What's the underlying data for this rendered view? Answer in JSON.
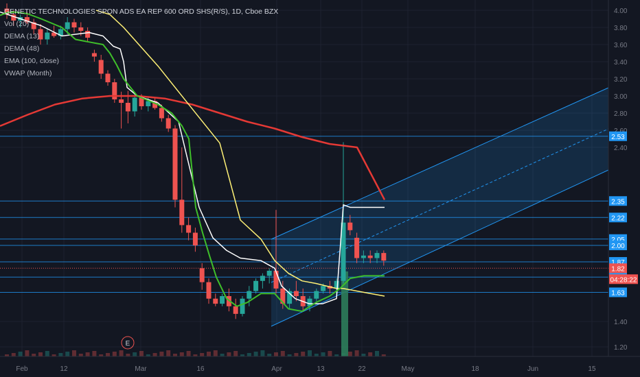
{
  "chart_data": {
    "type": "candlestick",
    "title": "GENETIC TECHNOLOGIES SPON ADS EA REP 600 ORD SHS(R/S), 1D, Cboe BZX",
    "indicators": [
      "Vol (20)",
      "DEMA (13)",
      "DEMA (48)",
      "EMA (100, close)",
      "VWAP (Month)"
    ],
    "colors": {
      "background": "#131722",
      "up": "#26a69a",
      "down": "#ef5350",
      "ema100": "#e53935",
      "dema13": "#ffffff",
      "dema48": "#fff176",
      "vwap": "#3fbf2a",
      "hlines": "#2196f3",
      "channel": "#2196f3",
      "volume_spike": "#2e7d5b",
      "earnings": "#ef5350"
    },
    "y_axis": {
      "ticks": [
        "4.00",
        "3.80",
        "3.60",
        "3.40",
        "3.20",
        "3.00",
        "2.80",
        "2.60",
        "2.40",
        "1.40",
        "1.20"
      ],
      "tick_values": [
        4.0,
        3.8,
        3.6,
        3.4,
        3.2,
        3.0,
        2.8,
        2.6,
        2.4,
        1.4,
        1.2
      ],
      "ylim": [
        1.15,
        4.05
      ]
    },
    "x_axis": {
      "ticks": [
        "Feb",
        "12",
        "Mar",
        "16",
        "Apr",
        "13",
        "22",
        "May",
        "18",
        "Jun",
        "15"
      ]
    },
    "price_lines": [
      {
        "label": "2.53",
        "value": 2.53
      },
      {
        "label": "2.35",
        "value": 2.35
      },
      {
        "label": "2.22",
        "value": 2.22
      },
      {
        "label": "2.05",
        "value": 2.05
      },
      {
        "label": "2.00",
        "value": 2.0
      },
      {
        "label": "1.87",
        "value": 1.87
      },
      {
        "label": "1.75",
        "value": 1.75
      },
      {
        "label": "1.63",
        "value": 1.63
      }
    ],
    "current_price": {
      "label": "1.82",
      "value": 1.82,
      "countdown": "04:28:22"
    },
    "candles": [
      [
        4.02,
        4.08,
        3.9,
        3.95
      ],
      [
        3.95,
        4.0,
        3.82,
        3.88
      ],
      [
        3.88,
        3.95,
        3.8,
        3.92
      ],
      [
        3.92,
        3.98,
        3.84,
        3.86
      ],
      [
        3.86,
        3.9,
        3.72,
        3.78
      ],
      [
        3.78,
        3.84,
        3.6,
        3.66
      ],
      [
        3.66,
        3.78,
        3.6,
        3.74
      ],
      [
        3.74,
        3.82,
        3.68,
        3.7
      ],
      [
        3.7,
        3.82,
        3.66,
        3.78
      ],
      [
        3.78,
        3.92,
        3.72,
        3.86
      ],
      [
        3.86,
        3.9,
        3.74,
        3.8
      ],
      [
        3.8,
        3.86,
        3.7,
        3.76
      ],
      [
        3.76,
        3.8,
        3.64,
        3.68
      ],
      [
        3.5,
        3.54,
        3.4,
        3.46
      ],
      [
        3.42,
        3.48,
        3.2,
        3.26
      ],
      [
        3.26,
        3.3,
        3.12,
        3.16
      ],
      [
        3.16,
        3.2,
        2.92,
        2.96
      ],
      [
        2.96,
        3.05,
        2.62,
        2.92
      ],
      [
        2.92,
        3.06,
        2.68,
        2.82
      ],
      [
        2.82,
        3.02,
        2.76,
        2.98
      ],
      [
        2.98,
        3.02,
        2.84,
        2.88
      ],
      [
        2.88,
        2.98,
        2.82,
        2.94
      ],
      [
        2.94,
        2.98,
        2.84,
        2.86
      ],
      [
        2.86,
        2.9,
        2.7,
        2.74
      ],
      [
        2.74,
        2.78,
        2.58,
        2.62
      ],
      [
        2.62,
        2.66,
        2.3,
        2.36
      ],
      [
        2.36,
        2.4,
        2.1,
        2.16
      ],
      [
        2.16,
        2.22,
        2.04,
        2.1
      ],
      [
        2.1,
        2.14,
        1.95,
        2.0
      ],
      [
        1.82,
        1.86,
        1.65,
        1.71
      ],
      [
        1.71,
        1.74,
        1.54,
        1.58
      ],
      [
        1.58,
        1.62,
        1.52,
        1.54
      ],
      [
        1.54,
        1.62,
        1.52,
        1.6
      ],
      [
        1.6,
        1.66,
        1.48,
        1.52
      ],
      [
        1.52,
        1.58,
        1.42,
        1.46
      ],
      [
        1.46,
        1.6,
        1.44,
        1.58
      ],
      [
        1.58,
        1.68,
        1.52,
        1.64
      ],
      [
        1.64,
        1.74,
        1.62,
        1.72
      ],
      [
        1.72,
        1.78,
        1.66,
        1.76
      ],
      [
        1.76,
        1.82,
        1.7,
        1.8
      ],
      [
        1.8,
        2.28,
        1.62,
        1.66
      ],
      [
        1.66,
        1.72,
        1.5,
        1.54
      ],
      [
        1.54,
        1.66,
        1.5,
        1.64
      ],
      [
        1.64,
        1.72,
        1.56,
        1.6
      ],
      [
        1.6,
        1.66,
        1.48,
        1.52
      ],
      [
        1.52,
        1.6,
        1.48,
        1.58
      ],
      [
        1.58,
        1.66,
        1.56,
        1.64
      ],
      [
        1.64,
        1.7,
        1.62,
        1.68
      ],
      [
        1.68,
        1.72,
        1.62,
        1.66
      ],
      [
        1.66,
        1.74,
        1.6,
        1.72
      ],
      [
        1.72,
        2.46,
        1.7,
        2.18
      ],
      [
        2.18,
        2.24,
        2.08,
        2.12
      ],
      [
        2.06,
        2.1,
        1.86,
        1.9
      ],
      [
        1.9,
        1.96,
        1.86,
        1.92
      ],
      [
        1.92,
        1.96,
        1.86,
        1.9
      ],
      [
        1.9,
        1.96,
        1.86,
        1.94
      ],
      [
        1.94,
        1.96,
        1.84,
        1.88
      ]
    ],
    "dema13": [
      [
        0,
        3.98
      ],
      [
        60,
        3.82
      ],
      [
        90,
        3.7
      ],
      [
        130,
        3.74
      ],
      [
        150,
        3.7
      ],
      [
        165,
        3.58
      ],
      [
        175,
        3.55
      ],
      [
        180,
        3.4
      ],
      [
        185,
        3.1
      ],
      [
        200,
        3.0
      ],
      [
        230,
        2.92
      ],
      [
        260,
        2.7
      ],
      [
        290,
        2.3
      ],
      [
        310,
        2.06
      ],
      [
        330,
        1.96
      ],
      [
        350,
        1.9
      ],
      [
        380,
        1.88
      ],
      [
        400,
        1.82
      ],
      [
        410,
        1.68
      ],
      [
        430,
        1.58
      ],
      [
        450,
        1.54
      ],
      [
        470,
        1.54
      ],
      [
        490,
        1.58
      ],
      [
        500,
        2.32
      ],
      [
        510,
        2.3
      ],
      [
        560,
        2.3
      ]
    ],
    "dema48": [
      [
        140,
        4.0
      ],
      [
        160,
        3.95
      ],
      [
        180,
        3.8
      ],
      [
        200,
        3.62
      ],
      [
        230,
        3.35
      ],
      [
        260,
        3.05
      ],
      [
        290,
        2.75
      ],
      [
        320,
        2.45
      ],
      [
        350,
        2.2
      ],
      [
        380,
        2.05
      ],
      [
        400,
        1.88
      ],
      [
        420,
        1.78
      ],
      [
        440,
        1.72
      ],
      [
        460,
        1.7
      ],
      [
        490,
        1.66
      ],
      [
        500,
        1.66
      ],
      [
        530,
        1.63
      ],
      [
        560,
        1.6
      ]
    ],
    "ema100": [
      [
        0,
        2.65
      ],
      [
        40,
        2.78
      ],
      [
        80,
        2.9
      ],
      [
        120,
        2.97
      ],
      [
        160,
        3.0
      ],
      [
        200,
        3.0
      ],
      [
        240,
        2.97
      ],
      [
        280,
        2.9
      ],
      [
        320,
        2.8
      ],
      [
        360,
        2.7
      ],
      [
        400,
        2.62
      ],
      [
        440,
        2.52
      ],
      [
        480,
        2.44
      ],
      [
        520,
        2.4
      ],
      [
        560,
        2.36
      ]
    ],
    "vwap": [
      [
        0,
        3.94
      ],
      [
        10,
        3.97
      ],
      [
        20,
        3.98
      ],
      [
        40,
        3.96
      ],
      [
        60,
        3.9
      ],
      [
        90,
        3.8
      ],
      [
        110,
        3.66
      ],
      [
        130,
        3.63
      ],
      [
        150,
        3.6
      ],
      [
        160,
        3.5
      ],
      [
        170,
        3.36
      ],
      [
        180,
        3.2
      ],
      [
        190,
        3.1
      ],
      [
        200,
        3.0
      ],
      [
        230,
        2.9
      ],
      [
        250,
        2.8
      ],
      [
        265,
        2.65
      ],
      [
        275,
        2.5
      ],
      [
        285,
        2.3
      ],
      [
        295,
        2.1
      ],
      [
        305,
        1.92
      ],
      [
        315,
        1.75
      ],
      [
        330,
        1.58
      ],
      [
        345,
        1.52
      ],
      [
        360,
        1.55
      ],
      [
        380,
        1.62
      ],
      [
        400,
        1.62
      ],
      [
        410,
        1.56
      ],
      [
        420,
        1.5
      ],
      [
        440,
        1.48
      ],
      [
        460,
        1.55
      ],
      [
        480,
        1.6
      ],
      [
        495,
        1.66
      ],
      [
        510,
        1.74
      ],
      [
        530,
        1.76
      ],
      [
        560,
        1.76
      ]
    ]
  },
  "earnings_marker": "E"
}
